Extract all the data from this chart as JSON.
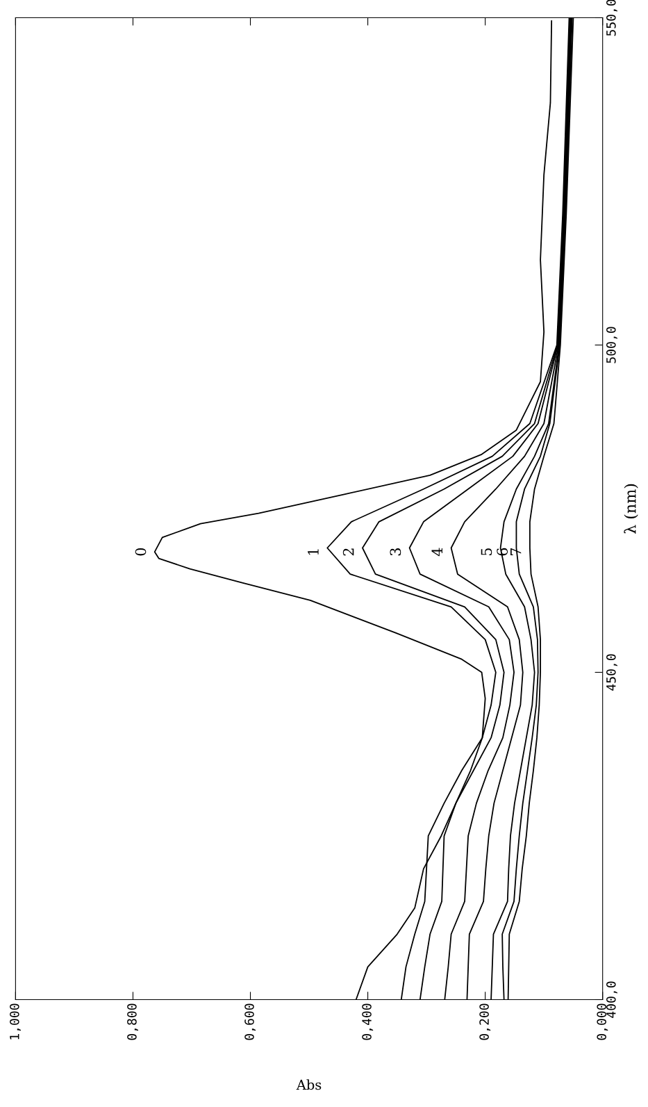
{
  "chart_data": {
    "type": "line",
    "xlabel": "Abs",
    "ylabel": "λ (nm)",
    "xlim": [
      1.0,
      0.0
    ],
    "ylim": [
      400,
      550
    ],
    "xticks": [
      {
        "value": 1.0,
        "label": "1,000"
      },
      {
        "value": 0.8,
        "label": "0,800"
      },
      {
        "value": 0.6,
        "label": "0,600"
      },
      {
        "value": 0.4,
        "label": "0,400"
      },
      {
        "value": 0.2,
        "label": "0,200"
      },
      {
        "value": 0.0,
        "label": "0,000"
      }
    ],
    "yticks": [
      {
        "value": 400,
        "label": "400,0"
      },
      {
        "value": 450,
        "label": "450,0"
      },
      {
        "value": 500,
        "label": "500,0"
      },
      {
        "value": 550,
        "label": "550,0"
      }
    ],
    "grid": false,
    "line_style": "solid",
    "marker": "none",
    "series": [
      {
        "color": "#000000",
        "x": [
          0.42,
          0.4,
          0.35,
          0.32,
          0.305,
          0.275,
          0.25,
          0.225,
          0.205,
          0.2,
          0.206,
          0.24,
          0.352,
          0.498,
          0.615,
          0.703,
          0.756,
          0.763,
          0.75,
          0.685,
          0.586,
          0.44,
          0.294,
          0.206,
          0.147,
          0.106,
          0.1,
          0.106,
          0.1,
          0.089,
          0.087
        ],
        "values": [
          400,
          405,
          410,
          414,
          420,
          425,
          430,
          435,
          440,
          446,
          450,
          452,
          456,
          461,
          463.7,
          465.8,
          467.4,
          468.4,
          470.6,
          472.7,
          474.3,
          477.2,
          480.1,
          483.3,
          487,
          494.4,
          502,
          513,
          526,
          537,
          549.5
        ]
      },
      {
        "color": "#000000",
        "x": [
          0.343,
          0.335,
          0.32,
          0.303,
          0.3,
          0.297,
          0.27,
          0.24,
          0.205,
          0.19,
          0.182,
          0.2,
          0.258,
          0.43,
          0.469,
          0.428,
          0.305,
          0.188,
          0.124,
          0.078,
          0.068,
          0.057
        ],
        "values": [
          400,
          405,
          410,
          415,
          420,
          425,
          430,
          435,
          440,
          445,
          450,
          455,
          460,
          465,
          469,
          473,
          478,
          483,
          488,
          500,
          520,
          550
        ]
      },
      {
        "color": "#000000",
        "x": [
          0.311,
          0.303,
          0.294,
          0.274,
          0.272,
          0.27,
          0.25,
          0.22,
          0.19,
          0.175,
          0.168,
          0.182,
          0.235,
          0.387,
          0.409,
          0.381,
          0.27,
          0.171,
          0.116,
          0.077,
          0.067,
          0.056
        ],
        "values": [
          400,
          405,
          410,
          415,
          420,
          425,
          430,
          435,
          440,
          445,
          450,
          455,
          460,
          465,
          469,
          473,
          478,
          483,
          488,
          500,
          520,
          550
        ]
      },
      {
        "color": "#000000",
        "x": [
          0.269,
          0.263,
          0.258,
          0.235,
          0.232,
          0.229,
          0.215,
          0.195,
          0.17,
          0.158,
          0.151,
          0.159,
          0.194,
          0.311,
          0.329,
          0.305,
          0.229,
          0.153,
          0.11,
          0.076,
          0.066,
          0.055
        ],
        "values": [
          400,
          405,
          410,
          415,
          420,
          425,
          430,
          435,
          440,
          445,
          450,
          455,
          460,
          465,
          469,
          473,
          478,
          483,
          488,
          500,
          520,
          550
        ]
      },
      {
        "color": "#000000",
        "x": [
          0.231,
          0.229,
          0.227,
          0.203,
          0.199,
          0.194,
          0.185,
          0.17,
          0.155,
          0.14,
          0.136,
          0.142,
          0.162,
          0.247,
          0.258,
          0.235,
          0.182,
          0.133,
          0.1,
          0.075,
          0.065,
          0.054
        ],
        "values": [
          400,
          405,
          410,
          415,
          420,
          425,
          430,
          435,
          440,
          445,
          450,
          455,
          460,
          465,
          469,
          473,
          478,
          483,
          488,
          500,
          520,
          550
        ]
      },
      {
        "color": "#000000",
        "x": [
          0.19,
          0.188,
          0.186,
          0.162,
          0.16,
          0.157,
          0.15,
          0.14,
          0.13,
          0.12,
          0.116,
          0.122,
          0.133,
          0.165,
          0.174,
          0.168,
          0.147,
          0.116,
          0.092,
          0.074,
          0.064,
          0.053
        ],
        "values": [
          400,
          405,
          410,
          415,
          420,
          425,
          430,
          435,
          440,
          445,
          450,
          455,
          460,
          465,
          469,
          473,
          478,
          483,
          488,
          500,
          520,
          550
        ]
      },
      {
        "color": "#000000",
        "x": [
          0.168,
          0.17,
          0.171,
          0.151,
          0.147,
          0.142,
          0.136,
          0.128,
          0.12,
          0.113,
          0.11,
          0.111,
          0.118,
          0.142,
          0.147,
          0.147,
          0.133,
          0.106,
          0.09,
          0.073,
          0.063,
          0.052
        ],
        "values": [
          400,
          405,
          410,
          415,
          420,
          425,
          430,
          435,
          440,
          445,
          450,
          455,
          460,
          465,
          469,
          473,
          478,
          483,
          488,
          500,
          520,
          550
        ]
      },
      {
        "color": "#000000",
        "x": [
          0.161,
          0.16,
          0.159,
          0.142,
          0.137,
          0.13,
          0.125,
          0.118,
          0.112,
          0.108,
          0.106,
          0.106,
          0.11,
          0.122,
          0.124,
          0.124,
          0.116,
          0.1,
          0.083,
          0.072,
          0.062,
          0.05
        ],
        "values": [
          400,
          405,
          410,
          415,
          420,
          425,
          430,
          435,
          440,
          445,
          450,
          455,
          460,
          465,
          469,
          473,
          478,
          483,
          488,
          500,
          520,
          550
        ]
      }
    ],
    "annotations": [
      "0",
      "1",
      "2",
      "3",
      "4",
      "5",
      "6",
      "7"
    ]
  }
}
